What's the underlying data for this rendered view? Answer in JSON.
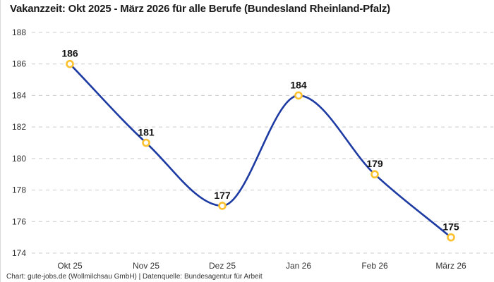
{
  "header": {
    "title": "Vakanzzeit: Okt 2025 - März 2026 für alle Berufe (Bundesland Rheinland-Pfalz)"
  },
  "footer": {
    "text": "Chart: gute-jobs.de (Wollmilchsau GmbH) | Datenquelle: Bundesagentur für Arbeit"
  },
  "chart_data": {
    "type": "line",
    "title": "Vakanzzeit: Okt 2025 - März 2026 für alle Berufe (Bundesland Rheinland-Pfalz)",
    "categories": [
      "Okt 25",
      "Nov 25",
      "Dez 25",
      "Jan 26",
      "Feb 26",
      "März 26"
    ],
    "values": [
      186,
      181,
      177,
      184,
      179,
      175
    ],
    "point_labels": [
      "186",
      "181",
      "177",
      "184",
      "179",
      "175"
    ],
    "xlabel": "",
    "ylabel": "",
    "ylim": [
      174,
      188
    ],
    "yticks": [
      188,
      186,
      184,
      182,
      180,
      178,
      176,
      174
    ],
    "grid": "horizontal-dashed",
    "legend": "none",
    "smooth": true,
    "colors": {
      "line": "#1d3ba3",
      "marker_ring": "#fcc12e",
      "marker_fill": "#ffffff",
      "grid": "#cccccc",
      "point_label": "#111111",
      "axis_text": "#333333",
      "title": "#1a1a1a",
      "background": "#ffffff"
    }
  }
}
